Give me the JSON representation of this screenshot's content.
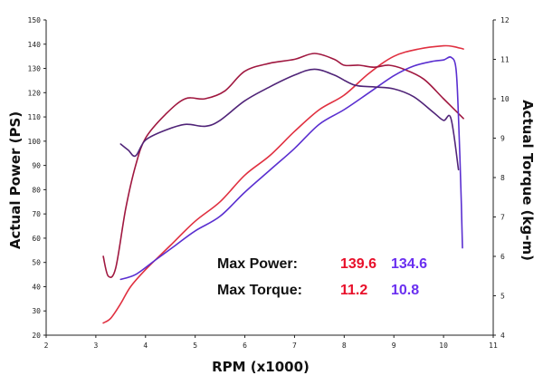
{
  "chart_data": {
    "type": "line",
    "title": "",
    "xlabel": "RPM (x1000)",
    "ylabel_left": "Actual Power (PS)",
    "ylabel_right": "Actual Torque (kg-m)",
    "xlim": [
      2,
      11
    ],
    "ylim_left": [
      20,
      150
    ],
    "ylim_right": [
      4,
      12
    ],
    "x_ticks": [
      "2",
      "3",
      "4",
      "5",
      "6",
      "7",
      "8",
      "9",
      "10",
      "11"
    ],
    "y_left_ticks": [
      "20",
      "30",
      "40",
      "50",
      "60",
      "70",
      "80",
      "90",
      "100",
      "110",
      "120",
      "130",
      "140",
      "150"
    ],
    "y_right_ticks": [
      "4",
      "5",
      "6",
      "7",
      "8",
      "9",
      "10",
      "11",
      "12"
    ],
    "grid": false,
    "series": [
      {
        "color": "#e03040",
        "axis": "left",
        "kind": "power",
        "points": [
          [
            3.15,
            25
          ],
          [
            3.3,
            27
          ],
          [
            3.5,
            33
          ],
          [
            3.7,
            40
          ],
          [
            4.0,
            47
          ],
          [
            4.5,
            57
          ],
          [
            5.0,
            67
          ],
          [
            5.5,
            75
          ],
          [
            6.0,
            86
          ],
          [
            6.5,
            94
          ],
          [
            7.0,
            104
          ],
          [
            7.5,
            113
          ],
          [
            8.0,
            119
          ],
          [
            8.5,
            128
          ],
          [
            9.0,
            135
          ],
          [
            9.5,
            138
          ],
          [
            10.0,
            139.3
          ],
          [
            10.2,
            139
          ],
          [
            10.4,
            138
          ]
        ]
      },
      {
        "color": "#a01840",
        "axis": "right",
        "kind": "torque",
        "points": [
          [
            3.15,
            6.0
          ],
          [
            3.25,
            5.5
          ],
          [
            3.4,
            5.7
          ],
          [
            3.6,
            7.2
          ],
          [
            3.8,
            8.3
          ],
          [
            4.0,
            9.0
          ],
          [
            4.4,
            9.6
          ],
          [
            4.8,
            10.0
          ],
          [
            5.2,
            10.0
          ],
          [
            5.6,
            10.2
          ],
          [
            6.0,
            10.7
          ],
          [
            6.5,
            10.9
          ],
          [
            7.0,
            11.0
          ],
          [
            7.4,
            11.15
          ],
          [
            7.8,
            11.0
          ],
          [
            8.0,
            10.85
          ],
          [
            8.3,
            10.85
          ],
          [
            8.6,
            10.8
          ],
          [
            8.9,
            10.85
          ],
          [
            9.2,
            10.75
          ],
          [
            9.6,
            10.5
          ],
          [
            10.0,
            10.0
          ],
          [
            10.4,
            9.5
          ]
        ]
      },
      {
        "color": "#5a2fd0",
        "axis": "left",
        "kind": "power",
        "points": [
          [
            3.5,
            43
          ],
          [
            3.8,
            45
          ],
          [
            4.2,
            51
          ],
          [
            4.6,
            57
          ],
          [
            5.0,
            63
          ],
          [
            5.5,
            69
          ],
          [
            6.0,
            79
          ],
          [
            6.5,
            88
          ],
          [
            7.0,
            97
          ],
          [
            7.5,
            107
          ],
          [
            8.0,
            113
          ],
          [
            8.5,
            120
          ],
          [
            9.0,
            127
          ],
          [
            9.4,
            131
          ],
          [
            9.8,
            133
          ],
          [
            10.0,
            133.5
          ],
          [
            10.15,
            134.6
          ],
          [
            10.25,
            130
          ],
          [
            10.3,
            110
          ],
          [
            10.35,
            80
          ],
          [
            10.38,
            56
          ]
        ]
      },
      {
        "color": "#502478",
        "axis": "right",
        "kind": "torque",
        "points": [
          [
            3.5,
            8.85
          ],
          [
            3.65,
            8.7
          ],
          [
            3.8,
            8.55
          ],
          [
            4.0,
            8.95
          ],
          [
            4.4,
            9.2
          ],
          [
            4.8,
            9.35
          ],
          [
            5.2,
            9.3
          ],
          [
            5.5,
            9.45
          ],
          [
            6.0,
            9.95
          ],
          [
            6.5,
            10.3
          ],
          [
            7.0,
            10.6
          ],
          [
            7.4,
            10.75
          ],
          [
            7.8,
            10.6
          ],
          [
            8.2,
            10.35
          ],
          [
            8.6,
            10.3
          ],
          [
            9.0,
            10.25
          ],
          [
            9.4,
            10.05
          ],
          [
            9.8,
            9.65
          ],
          [
            10.0,
            9.45
          ],
          [
            10.15,
            9.5
          ],
          [
            10.3,
            8.2
          ]
        ]
      }
    ]
  },
  "stats": {
    "max_power_label": "Max Power:",
    "max_torque_label": "Max Torque:",
    "red_power": "139.6",
    "blue_power": "134.6",
    "red_torque": "11.2",
    "blue_torque": "10.8",
    "red_color": "#e8102a",
    "blue_color": "#6a2ff0"
  }
}
